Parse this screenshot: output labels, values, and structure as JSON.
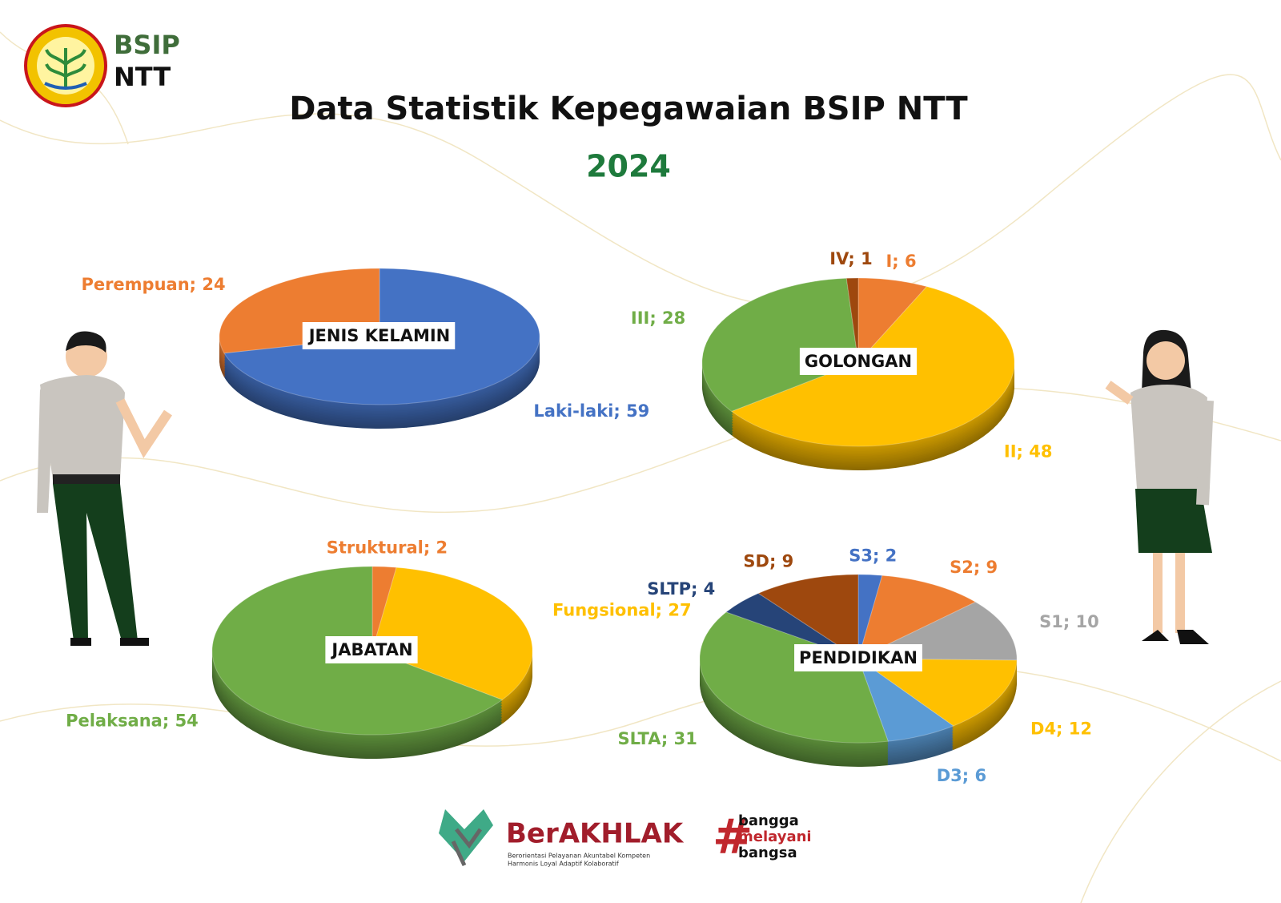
{
  "header": {
    "logo_top": "BSIP",
    "logo_bottom": "NTT",
    "title": "Data Statistik Kepegawaian BSIP NTT",
    "year": "2024"
  },
  "footer": {
    "brand": "BerAKHLAK",
    "tagline_1": "Berorientasi Pelayanan Akuntabel Kompeten",
    "tagline_2": "Harmonis Loyal Adaptif Kolaboratif",
    "slogan": [
      "bangga",
      "melayani",
      "bangsa"
    ]
  },
  "chart_data": [
    {
      "type": "pie",
      "title": "JENIS KELAMIN",
      "categories": [
        "Laki-laki",
        "Perempuan"
      ],
      "values": [
        59,
        24
      ],
      "value_labels": [
        "Laki-laki; 59",
        "Perempuan; 24"
      ],
      "colors": [
        "#4472c4",
        "#ed7d31"
      ]
    },
    {
      "type": "pie",
      "title": "GOLONGAN",
      "categories": [
        "I",
        "II",
        "III",
        "IV"
      ],
      "values": [
        6,
        48,
        28,
        1
      ],
      "value_labels": [
        "I; 6",
        "II; 48",
        "III; 28",
        "IV; 1"
      ],
      "colors": [
        "#ed7d31",
        "#ffc000",
        "#70ad47",
        "#9e480e"
      ]
    },
    {
      "type": "pie",
      "title": "JABATAN",
      "categories": [
        "Struktural",
        "Fungsional",
        "Pelaksana"
      ],
      "values": [
        2,
        27,
        54
      ],
      "value_labels": [
        "Struktural; 2",
        "Fungsional; 27",
        "Pelaksana; 54"
      ],
      "colors": [
        "#ed7d31",
        "#ffc000",
        "#70ad47"
      ]
    },
    {
      "type": "pie",
      "title": "PENDIDIKAN",
      "categories": [
        "S3",
        "S2",
        "S1",
        "D4",
        "D3",
        "SLTA",
        "SLTP",
        "SD"
      ],
      "values": [
        2,
        9,
        10,
        12,
        6,
        31,
        4,
        9
      ],
      "value_labels": [
        "S3; 2",
        "S2; 9",
        "S1; 10",
        "D4; 12",
        "D3; 6",
        "SLTA; 31",
        "SLTP; 4",
        "SD; 9"
      ],
      "colors": [
        "#4472c4",
        "#ed7d31",
        "#a5a5a5",
        "#ffc000",
        "#5b9bd5",
        "#70ad47",
        "#264478",
        "#9e480e"
      ]
    }
  ]
}
